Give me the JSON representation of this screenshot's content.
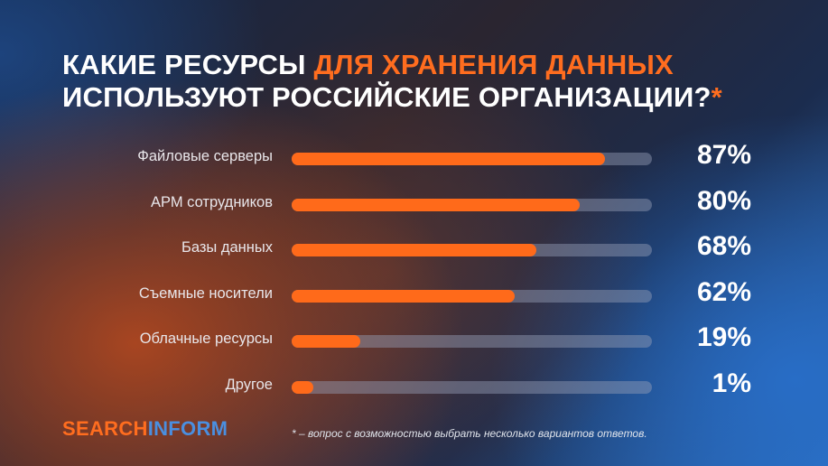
{
  "title": {
    "line1_white": "КАКИЕ РЕСУРСЫ ",
    "line1_orange": "ДЛЯ ХРАНЕНИЯ ДАННЫХ",
    "line2_white": "ИСПОЛЬЗУЮТ РОССИЙСКИЕ ОРГАНИЗАЦИИ?",
    "line2_star": "*"
  },
  "colors": {
    "accent": "#ff6a1a",
    "track": "#8a95ad",
    "logo_blue": "#4a8fe0"
  },
  "chart_data": {
    "type": "bar",
    "orientation": "horizontal",
    "xlim": [
      0,
      100
    ],
    "unit": "%",
    "categories": [
      "Файловые серверы",
      "АРМ сотрудников",
      "Базы данных",
      "Съемные носители",
      "Облачные ресурсы",
      "Другое"
    ],
    "values": [
      87,
      80,
      68,
      62,
      19,
      1
    ],
    "value_labels": [
      "87%",
      "80%",
      "68%",
      "62%",
      "19%",
      "1%"
    ]
  },
  "footer": {
    "logo_part1": "SEARCH",
    "logo_part2": "INFORM",
    "footnote": "* – вопрос с возможностью выбрать несколько вариантов ответов."
  }
}
